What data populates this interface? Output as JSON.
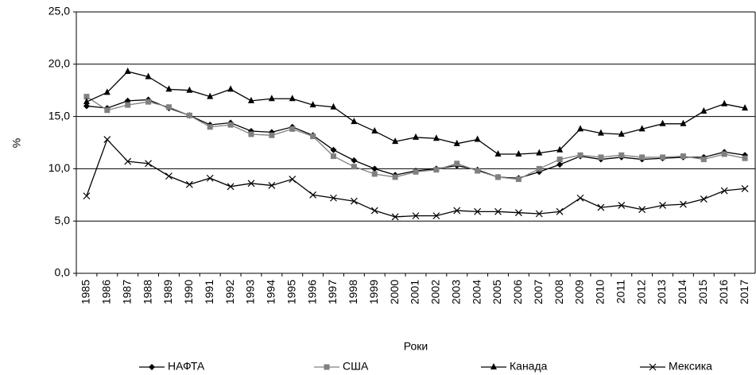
{
  "chart_data": {
    "type": "line",
    "xlabel": "Роки",
    "ylabel": "%",
    "categories": [
      "1985",
      "1986",
      "1987",
      "1988",
      "1989",
      "1990",
      "1991",
      "1992",
      "1993",
      "1994",
      "1995",
      "1996",
      "1997",
      "1998",
      "1999",
      "2000",
      "2001",
      "2002",
      "2003",
      "2004",
      "2005",
      "2006",
      "2007",
      "2008",
      "2009",
      "2010",
      "2011",
      "2012",
      "2013",
      "2014",
      "2015",
      "2016",
      "2017"
    ],
    "series": [
      {
        "name": "НАФТА",
        "color": "#000000",
        "marker": "diamond",
        "values": [
          16.0,
          15.8,
          16.5,
          16.6,
          15.8,
          15.1,
          14.2,
          14.4,
          13.6,
          13.5,
          14.0,
          13.2,
          11.8,
          10.8,
          10.0,
          9.4,
          9.8,
          10.0,
          10.3,
          9.9,
          9.2,
          9.1,
          9.7,
          10.4,
          11.2,
          10.9,
          11.1,
          10.9,
          11.0,
          11.1,
          11.1,
          11.6,
          11.3
        ]
      },
      {
        "name": "США",
        "color": "#808080",
        "marker": "square",
        "values": [
          16.9,
          15.6,
          16.1,
          16.4,
          15.9,
          15.1,
          14.0,
          14.2,
          13.3,
          13.2,
          13.8,
          13.1,
          11.2,
          10.2,
          9.5,
          9.2,
          9.7,
          9.9,
          10.5,
          9.8,
          9.2,
          9.0,
          10.0,
          10.9,
          11.3,
          11.1,
          11.3,
          11.1,
          11.1,
          11.2,
          10.9,
          11.4,
          11.0
        ]
      },
      {
        "name": "Канада",
        "color": "#000000",
        "marker": "triangle",
        "values": [
          16.4,
          17.3,
          19.3,
          18.8,
          17.6,
          17.5,
          16.9,
          17.6,
          16.5,
          16.7,
          16.7,
          16.1,
          15.9,
          14.5,
          13.6,
          12.6,
          13.0,
          12.9,
          12.4,
          12.8,
          11.4,
          11.4,
          11.5,
          11.8,
          13.8,
          13.4,
          13.3,
          13.8,
          14.3,
          14.3,
          15.5,
          16.2,
          15.8
        ]
      },
      {
        "name": "Мексика",
        "color": "#000000",
        "marker": "x",
        "values": [
          7.4,
          12.8,
          10.7,
          10.5,
          9.3,
          8.5,
          9.1,
          8.3,
          8.6,
          8.4,
          9.0,
          7.5,
          7.2,
          6.9,
          6.0,
          5.4,
          5.5,
          5.5,
          6.0,
          5.9,
          5.9,
          5.8,
          5.7,
          5.9,
          7.2,
          6.3,
          6.5,
          6.1,
          6.5,
          6.6,
          7.1,
          7.9,
          8.1
        ]
      }
    ],
    "ylim": [
      0,
      25
    ],
    "yticks": [
      {
        "value": 0,
        "label": "0,0"
      },
      {
        "value": 5,
        "label": "5,0"
      },
      {
        "value": 10,
        "label": "10,0"
      },
      {
        "value": 15,
        "label": "15,0"
      },
      {
        "value": 20,
        "label": "20,0"
      },
      {
        "value": 25,
        "label": "25,0"
      }
    ],
    "grid": true,
    "legend": "bottom"
  }
}
